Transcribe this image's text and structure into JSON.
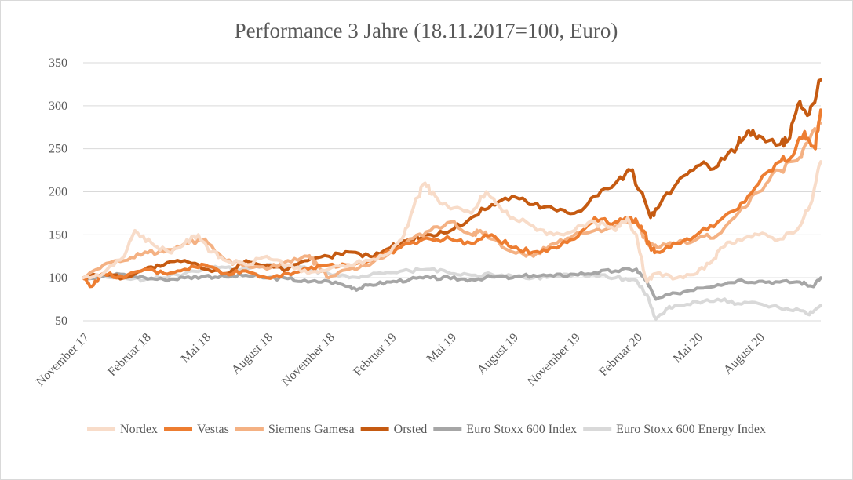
{
  "chart_data": {
    "type": "line",
    "title": "Performance 3 Jahre (18.11.2017=100, Euro)",
    "xlabel": "",
    "ylabel": "",
    "ylim": [
      50,
      350
    ],
    "y_ticks": [
      50,
      100,
      150,
      200,
      250,
      300,
      350
    ],
    "grid": "horizontal",
    "legend_position": "bottom",
    "x_range": [
      "2017-11-18",
      "2020-11-18"
    ],
    "x_tick_labels": [
      {
        "date": "2017-11-18",
        "label": "November 17"
      },
      {
        "date": "2018-02-18",
        "label": "Februar 18"
      },
      {
        "date": "2018-05-18",
        "label": "Mai 18"
      },
      {
        "date": "2018-08-18",
        "label": "August 18"
      },
      {
        "date": "2018-11-18",
        "label": "November 18"
      },
      {
        "date": "2019-02-18",
        "label": "Februar 19"
      },
      {
        "date": "2019-05-18",
        "label": "Mai 19"
      },
      {
        "date": "2019-08-18",
        "label": "August 19"
      },
      {
        "date": "2019-11-18",
        "label": "November 19"
      },
      {
        "date": "2020-02-18",
        "label": "Februar 20"
      },
      {
        "date": "2020-05-18",
        "label": "Mai 20"
      },
      {
        "date": "2020-08-18",
        "label": "August 20"
      }
    ],
    "series": [
      {
        "name": "Nordex",
        "color": "#f8dcc9",
        "x": [
          "2017-11-18",
          "2017-12-18",
          "2018-01-18",
          "2018-02-03",
          "2018-02-28",
          "2018-03-25",
          "2018-04-18",
          "2018-05-08",
          "2018-05-28",
          "2018-06-18",
          "2018-07-18",
          "2018-08-18",
          "2018-09-18",
          "2018-10-18",
          "2018-11-18",
          "2018-12-18",
          "2019-01-18",
          "2019-02-18",
          "2019-03-10",
          "2019-03-25",
          "2019-04-10",
          "2019-04-25",
          "2019-05-18",
          "2019-06-18",
          "2019-07-10",
          "2019-08-01",
          "2019-08-18",
          "2019-09-18",
          "2019-10-18",
          "2019-11-18",
          "2019-12-18",
          "2020-01-18",
          "2020-02-05",
          "2020-02-18",
          "2020-03-05",
          "2020-03-18",
          "2020-04-18",
          "2020-05-18",
          "2020-06-10",
          "2020-06-25",
          "2020-07-18",
          "2020-08-18",
          "2020-09-18",
          "2020-10-18",
          "2020-11-05",
          "2020-11-18"
        ],
        "values": [
          100,
          105,
          125,
          155,
          140,
          130,
          140,
          150,
          130,
          120,
          115,
          125,
          115,
          105,
          110,
          115,
          120,
          130,
          150,
          185,
          210,
          195,
          180,
          175,
          200,
          180,
          170,
          160,
          150,
          155,
          165,
          155,
          170,
          150,
          95,
          105,
          100,
          105,
          120,
          135,
          145,
          150,
          145,
          160,
          190,
          235
        ]
      },
      {
        "name": "Vestas",
        "color": "#ed7d31",
        "x": [
          "2017-11-18",
          "2017-12-01",
          "2017-12-18",
          "2018-01-18",
          "2018-02-18",
          "2018-03-18",
          "2018-04-18",
          "2018-05-18",
          "2018-06-18",
          "2018-07-18",
          "2018-08-18",
          "2018-09-18",
          "2018-10-18",
          "2018-11-18",
          "2018-12-18",
          "2019-01-18",
          "2019-02-18",
          "2019-03-18",
          "2019-04-18",
          "2019-05-18",
          "2019-06-18",
          "2019-07-18",
          "2019-08-18",
          "2019-09-18",
          "2019-10-18",
          "2019-11-18",
          "2019-12-18",
          "2020-01-18",
          "2020-02-10",
          "2020-02-25",
          "2020-03-10",
          "2020-03-20",
          "2020-04-18",
          "2020-05-18",
          "2020-06-18",
          "2020-07-18",
          "2020-08-18",
          "2020-09-18",
          "2020-10-05",
          "2020-10-25",
          "2020-11-10",
          "2020-11-18"
        ],
        "values": [
          100,
          90,
          105,
          100,
          110,
          105,
          110,
          115,
          105,
          108,
          100,
          105,
          110,
          115,
          115,
          120,
          130,
          140,
          145,
          145,
          140,
          150,
          135,
          130,
          135,
          145,
          170,
          165,
          170,
          160,
          135,
          130,
          140,
          150,
          165,
          180,
          210,
          235,
          240,
          270,
          250,
          295
        ]
      },
      {
        "name": "Siemens Gamesa",
        "color": "#f4b183",
        "x": [
          "2017-11-18",
          "2017-12-18",
          "2018-01-18",
          "2018-02-18",
          "2018-03-18",
          "2018-04-18",
          "2018-05-18",
          "2018-06-18",
          "2018-07-18",
          "2018-08-18",
          "2018-09-18",
          "2018-10-18",
          "2018-11-01",
          "2018-11-18",
          "2018-12-18",
          "2019-01-18",
          "2019-02-18",
          "2019-03-18",
          "2019-04-18",
          "2019-05-18",
          "2019-06-18",
          "2019-07-01",
          "2019-07-18",
          "2019-08-18",
          "2019-09-18",
          "2019-10-18",
          "2019-11-18",
          "2019-12-18",
          "2020-01-18",
          "2020-02-18",
          "2020-03-05",
          "2020-03-20",
          "2020-04-18",
          "2020-05-18",
          "2020-06-18",
          "2020-07-18",
          "2020-08-18",
          "2020-09-18",
          "2020-10-18",
          "2020-11-01",
          "2020-11-18"
        ],
        "values": [
          100,
          115,
          120,
          130,
          130,
          140,
          145,
          120,
          115,
          110,
          120,
          125,
          115,
          100,
          110,
          115,
          130,
          145,
          155,
          165,
          150,
          155,
          145,
          130,
          125,
          140,
          150,
          155,
          160,
          165,
          140,
          135,
          140,
          145,
          150,
          175,
          200,
          225,
          240,
          260,
          280
        ]
      },
      {
        "name": "Orsted",
        "color": "#c55a11",
        "x": [
          "2017-11-18",
          "2017-12-18",
          "2018-01-18",
          "2018-02-18",
          "2018-03-18",
          "2018-04-18",
          "2018-05-18",
          "2018-06-18",
          "2018-07-18",
          "2018-08-18",
          "2018-09-18",
          "2018-10-18",
          "2018-11-18",
          "2018-12-18",
          "2019-01-18",
          "2019-02-18",
          "2019-03-18",
          "2019-04-18",
          "2019-05-18",
          "2019-06-18",
          "2019-07-18",
          "2019-08-18",
          "2019-09-18",
          "2019-10-18",
          "2019-11-18",
          "2019-12-18",
          "2020-01-18",
          "2020-02-10",
          "2020-02-25",
          "2020-03-10",
          "2020-03-20",
          "2020-04-18",
          "2020-05-18",
          "2020-06-18",
          "2020-07-18",
          "2020-08-01",
          "2020-08-18",
          "2020-09-18",
          "2020-10-01",
          "2020-10-18",
          "2020-11-01",
          "2020-11-18"
        ],
        "values": [
          100,
          105,
          100,
          110,
          115,
          120,
          110,
          105,
          120,
          115,
          110,
          120,
          125,
          130,
          125,
          135,
          145,
          150,
          155,
          170,
          185,
          195,
          185,
          180,
          175,
          195,
          210,
          225,
          200,
          170,
          180,
          210,
          230,
          230,
          255,
          270,
          265,
          255,
          260,
          305,
          290,
          330
        ]
      },
      {
        "name": "Euro Stoxx 600 Index",
        "color": "#a6a6a6",
        "x": [
          "2017-11-18",
          "2017-12-18",
          "2018-01-18",
          "2018-02-18",
          "2018-03-18",
          "2018-04-18",
          "2018-05-18",
          "2018-06-18",
          "2018-07-18",
          "2018-08-18",
          "2018-09-18",
          "2018-10-18",
          "2018-11-18",
          "2018-12-18",
          "2019-01-01",
          "2019-01-18",
          "2019-02-18",
          "2019-03-18",
          "2019-04-18",
          "2019-05-18",
          "2019-06-18",
          "2019-07-18",
          "2019-08-18",
          "2019-09-18",
          "2019-10-18",
          "2019-11-18",
          "2019-12-18",
          "2020-01-18",
          "2020-02-18",
          "2020-03-05",
          "2020-03-18",
          "2020-04-18",
          "2020-05-18",
          "2020-06-18",
          "2020-07-18",
          "2020-08-18",
          "2020-09-18",
          "2020-10-18",
          "2020-11-05",
          "2020-11-18"
        ],
        "values": [
          100,
          102,
          104,
          100,
          98,
          100,
          102,
          101,
          103,
          100,
          99,
          95,
          96,
          90,
          87,
          92,
          95,
          98,
          100,
          99,
          98,
          101,
          100,
          103,
          102,
          104,
          106,
          108,
          110,
          95,
          75,
          82,
          88,
          92,
          97,
          96,
          95,
          95,
          90,
          100
        ]
      },
      {
        "name": "Euro Stoxx 600 Energy Index",
        "color": "#d9d9d9",
        "x": [
          "2017-11-18",
          "2017-12-18",
          "2018-01-18",
          "2018-02-18",
          "2018-03-18",
          "2018-04-18",
          "2018-05-18",
          "2018-06-18",
          "2018-07-18",
          "2018-08-18",
          "2018-09-18",
          "2018-10-18",
          "2018-11-18",
          "2018-12-18",
          "2019-01-18",
          "2019-02-18",
          "2019-03-18",
          "2019-04-18",
          "2019-05-18",
          "2019-06-18",
          "2019-07-18",
          "2019-08-18",
          "2019-09-18",
          "2019-10-18",
          "2019-11-18",
          "2019-12-18",
          "2020-01-18",
          "2020-02-18",
          "2020-03-05",
          "2020-03-18",
          "2020-04-05",
          "2020-04-18",
          "2020-05-18",
          "2020-06-18",
          "2020-07-18",
          "2020-08-18",
          "2020-09-18",
          "2020-10-18",
          "2020-11-01",
          "2020-11-18"
        ],
        "values": [
          100,
          102,
          100,
          98,
          100,
          105,
          110,
          112,
          110,
          115,
          113,
          110,
          105,
          100,
          103,
          106,
          108,
          110,
          105,
          103,
          104,
          102,
          100,
          102,
          104,
          103,
          100,
          97,
          80,
          52,
          65,
          68,
          72,
          75,
          70,
          70,
          65,
          62,
          57,
          68
        ]
      }
    ]
  }
}
